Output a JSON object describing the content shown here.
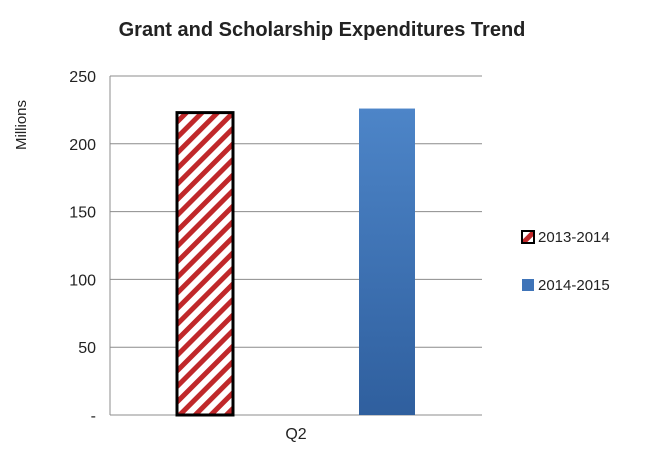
{
  "chart_data": {
    "type": "bar",
    "title": "Grant and Scholarship Expenditures Trend",
    "xlabel": "",
    "ylabel": "Millions",
    "categories": [
      "Q2"
    ],
    "series": [
      {
        "name": "2013-2014",
        "values": [
          223
        ],
        "color": "#c0282a",
        "pattern": "diagonal-stripes"
      },
      {
        "name": "2014-2015",
        "values": [
          226
        ],
        "color": "#3f74b8"
      }
    ],
    "ylim": [
      0,
      250
    ],
    "y_ticks": [
      0,
      50,
      100,
      150,
      200,
      250
    ],
    "y_tick_labels": [
      "-",
      "50",
      "100",
      "150",
      "200",
      "250"
    ],
    "grid": true,
    "legend_position": "right"
  }
}
